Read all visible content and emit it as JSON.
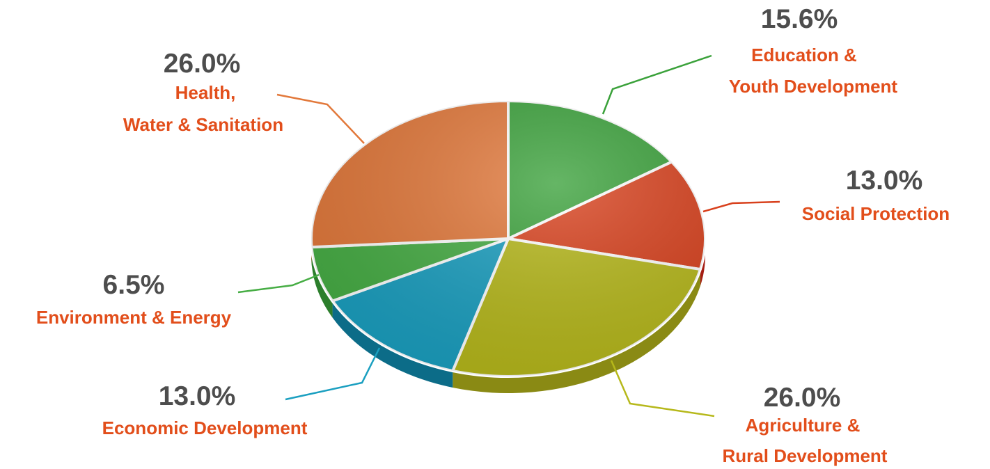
{
  "chart_data": {
    "type": "pie",
    "categories": [
      "Education & Youth Development",
      "Social Protection",
      "Agriculture & Rural Development",
      "Economic Development",
      "Environment & Energy",
      "Health, Water & Sanitation"
    ],
    "values": [
      15.6,
      13.0,
      26.0,
      13.0,
      6.5,
      26.0
    ],
    "value_labels": [
      "15.6%",
      "13.0%",
      "26.0%",
      "13.0%",
      "6.5%",
      "26.0%"
    ],
    "label_lines": [
      [
        "Education &",
        "Youth Development"
      ],
      [
        "Social Protection"
      ],
      [
        "Agriculture &",
        "Rural Development"
      ],
      [
        "Economic Development"
      ],
      [
        "Environment & Energy"
      ],
      [
        "Health,",
        "Water & Sanitation"
      ]
    ],
    "colors": [
      "#3aa13a",
      "#d8401c",
      "#b6b81a",
      "#1a9fc0",
      "#46ad44",
      "#e2783a"
    ],
    "side_colors": [
      "#2a7a2a",
      "#a51e14",
      "#8a8a14",
      "#0c6c88",
      "#2c7e2c",
      "#b5541f"
    ],
    "legend": "none"
  }
}
